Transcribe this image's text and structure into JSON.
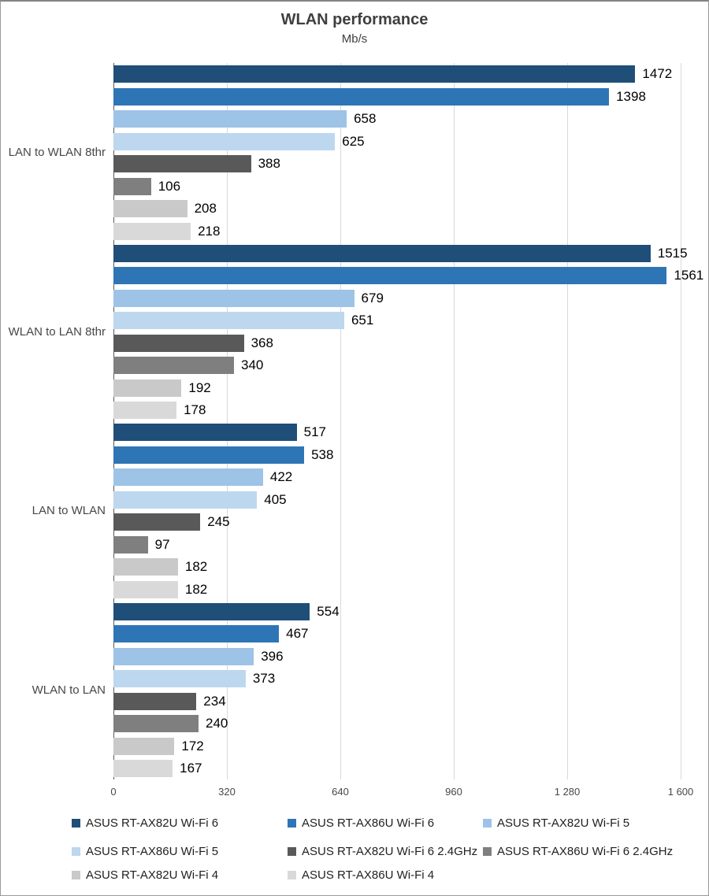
{
  "chart_data": {
    "type": "bar",
    "orientation": "horizontal",
    "title": "WLAN performance",
    "subtitle": "Mb/s",
    "xlim": [
      0,
      1600
    ],
    "grid": true,
    "legend_position": "bottom",
    "xticks": [
      {
        "value": 0,
        "label": "0"
      },
      {
        "value": 320,
        "label": "320"
      },
      {
        "value": 640,
        "label": "640"
      },
      {
        "value": 960,
        "label": "960"
      },
      {
        "value": 1280,
        "label": "1 280"
      },
      {
        "value": 1600,
        "label": "1 600"
      }
    ],
    "categories": [
      "LAN to WLAN 8thr",
      "WLAN to LAN 8thr",
      "LAN to WLAN",
      "WLAN to LAN"
    ],
    "series": [
      {
        "name": "ASUS RT-AX82U Wi-Fi 6",
        "color": "#1F4E79",
        "values": [
          1472,
          1515,
          517,
          554
        ]
      },
      {
        "name": "ASUS RT-AX86U Wi-Fi 6",
        "color": "#2E75B6",
        "values": [
          1398,
          1561,
          538,
          467
        ]
      },
      {
        "name": "ASUS RT-AX82U Wi-Fi 5",
        "color": "#9DC3E6",
        "values": [
          658,
          679,
          422,
          396
        ]
      },
      {
        "name": "ASUS RT-AX86U Wi-Fi 5",
        "color": "#BDD7EE",
        "values": [
          625,
          651,
          405,
          373
        ]
      },
      {
        "name": "ASUS RT-AX82U Wi-Fi 6 2.4GHz",
        "color": "#595959",
        "values": [
          388,
          368,
          245,
          234
        ]
      },
      {
        "name": "ASUS RT-AX86U Wi-Fi 6 2.4GHz",
        "color": "#7F7F7F",
        "values": [
          106,
          340,
          97,
          240
        ]
      },
      {
        "name": "ASUS RT-AX82U Wi-Fi 4",
        "color": "#C9C9C9",
        "values": [
          208,
          192,
          182,
          172
        ]
      },
      {
        "name": "ASUS RT-AX86U Wi-Fi 4",
        "color": "#D9D9D9",
        "values": [
          218,
          178,
          182,
          167
        ]
      }
    ],
    "legend_rows": [
      [
        0,
        1,
        2
      ],
      [
        3,
        4,
        5
      ],
      [
        6,
        7
      ]
    ],
    "legend_col_x": [
      90,
      364,
      612
    ],
    "legend_row_y": [
      0,
      36,
      66
    ]
  }
}
